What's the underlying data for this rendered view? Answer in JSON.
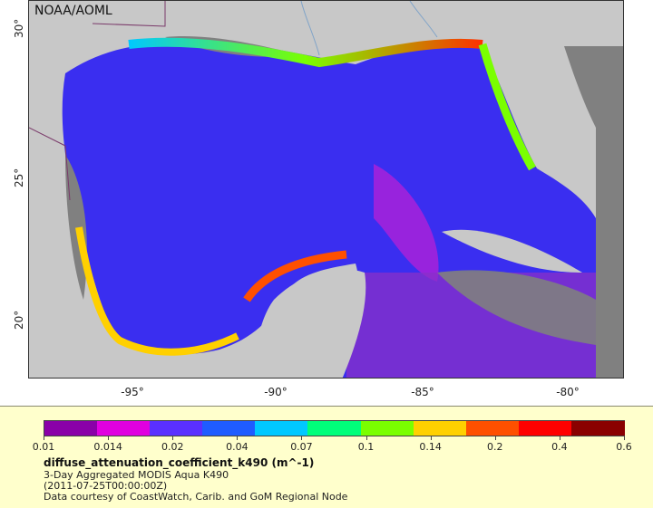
{
  "map": {
    "credit": "NOAA/AOML",
    "lat_labels": [
      "30°",
      "25°",
      "20°"
    ],
    "lon_labels": [
      "-95°",
      "-90°",
      "-85°",
      "-80°"
    ],
    "colors": {
      "land": "#c8c8c8",
      "nodata": "#808080",
      "ocean_low": "#3a2ef0",
      "border": "#7a3a6a",
      "river": "#7fa3c8"
    }
  },
  "legend": {
    "ticks": [
      "0.01",
      "0.014",
      "0.02",
      "0.04",
      "0.07",
      "0.1",
      "0.14",
      "0.2",
      "0.4",
      "0.6"
    ],
    "colors": [
      "#8a00a8",
      "#e000e0",
      "#5a30ff",
      "#1f5cff",
      "#00c8ff",
      "#00ff7a",
      "#7aff00",
      "#ffd000",
      "#ff5000",
      "#ff0000",
      "#8a0000"
    ],
    "variable": "diffuse_attenuation_coefficient_k490 (m^-1)",
    "source": "3-Day Aggregated MODIS Aqua K490",
    "time": "(2011-07-25T00:00:00Z)",
    "courtesy": "Data courtesy of CoastWatch, Carib. and GoM Regional Node"
  }
}
